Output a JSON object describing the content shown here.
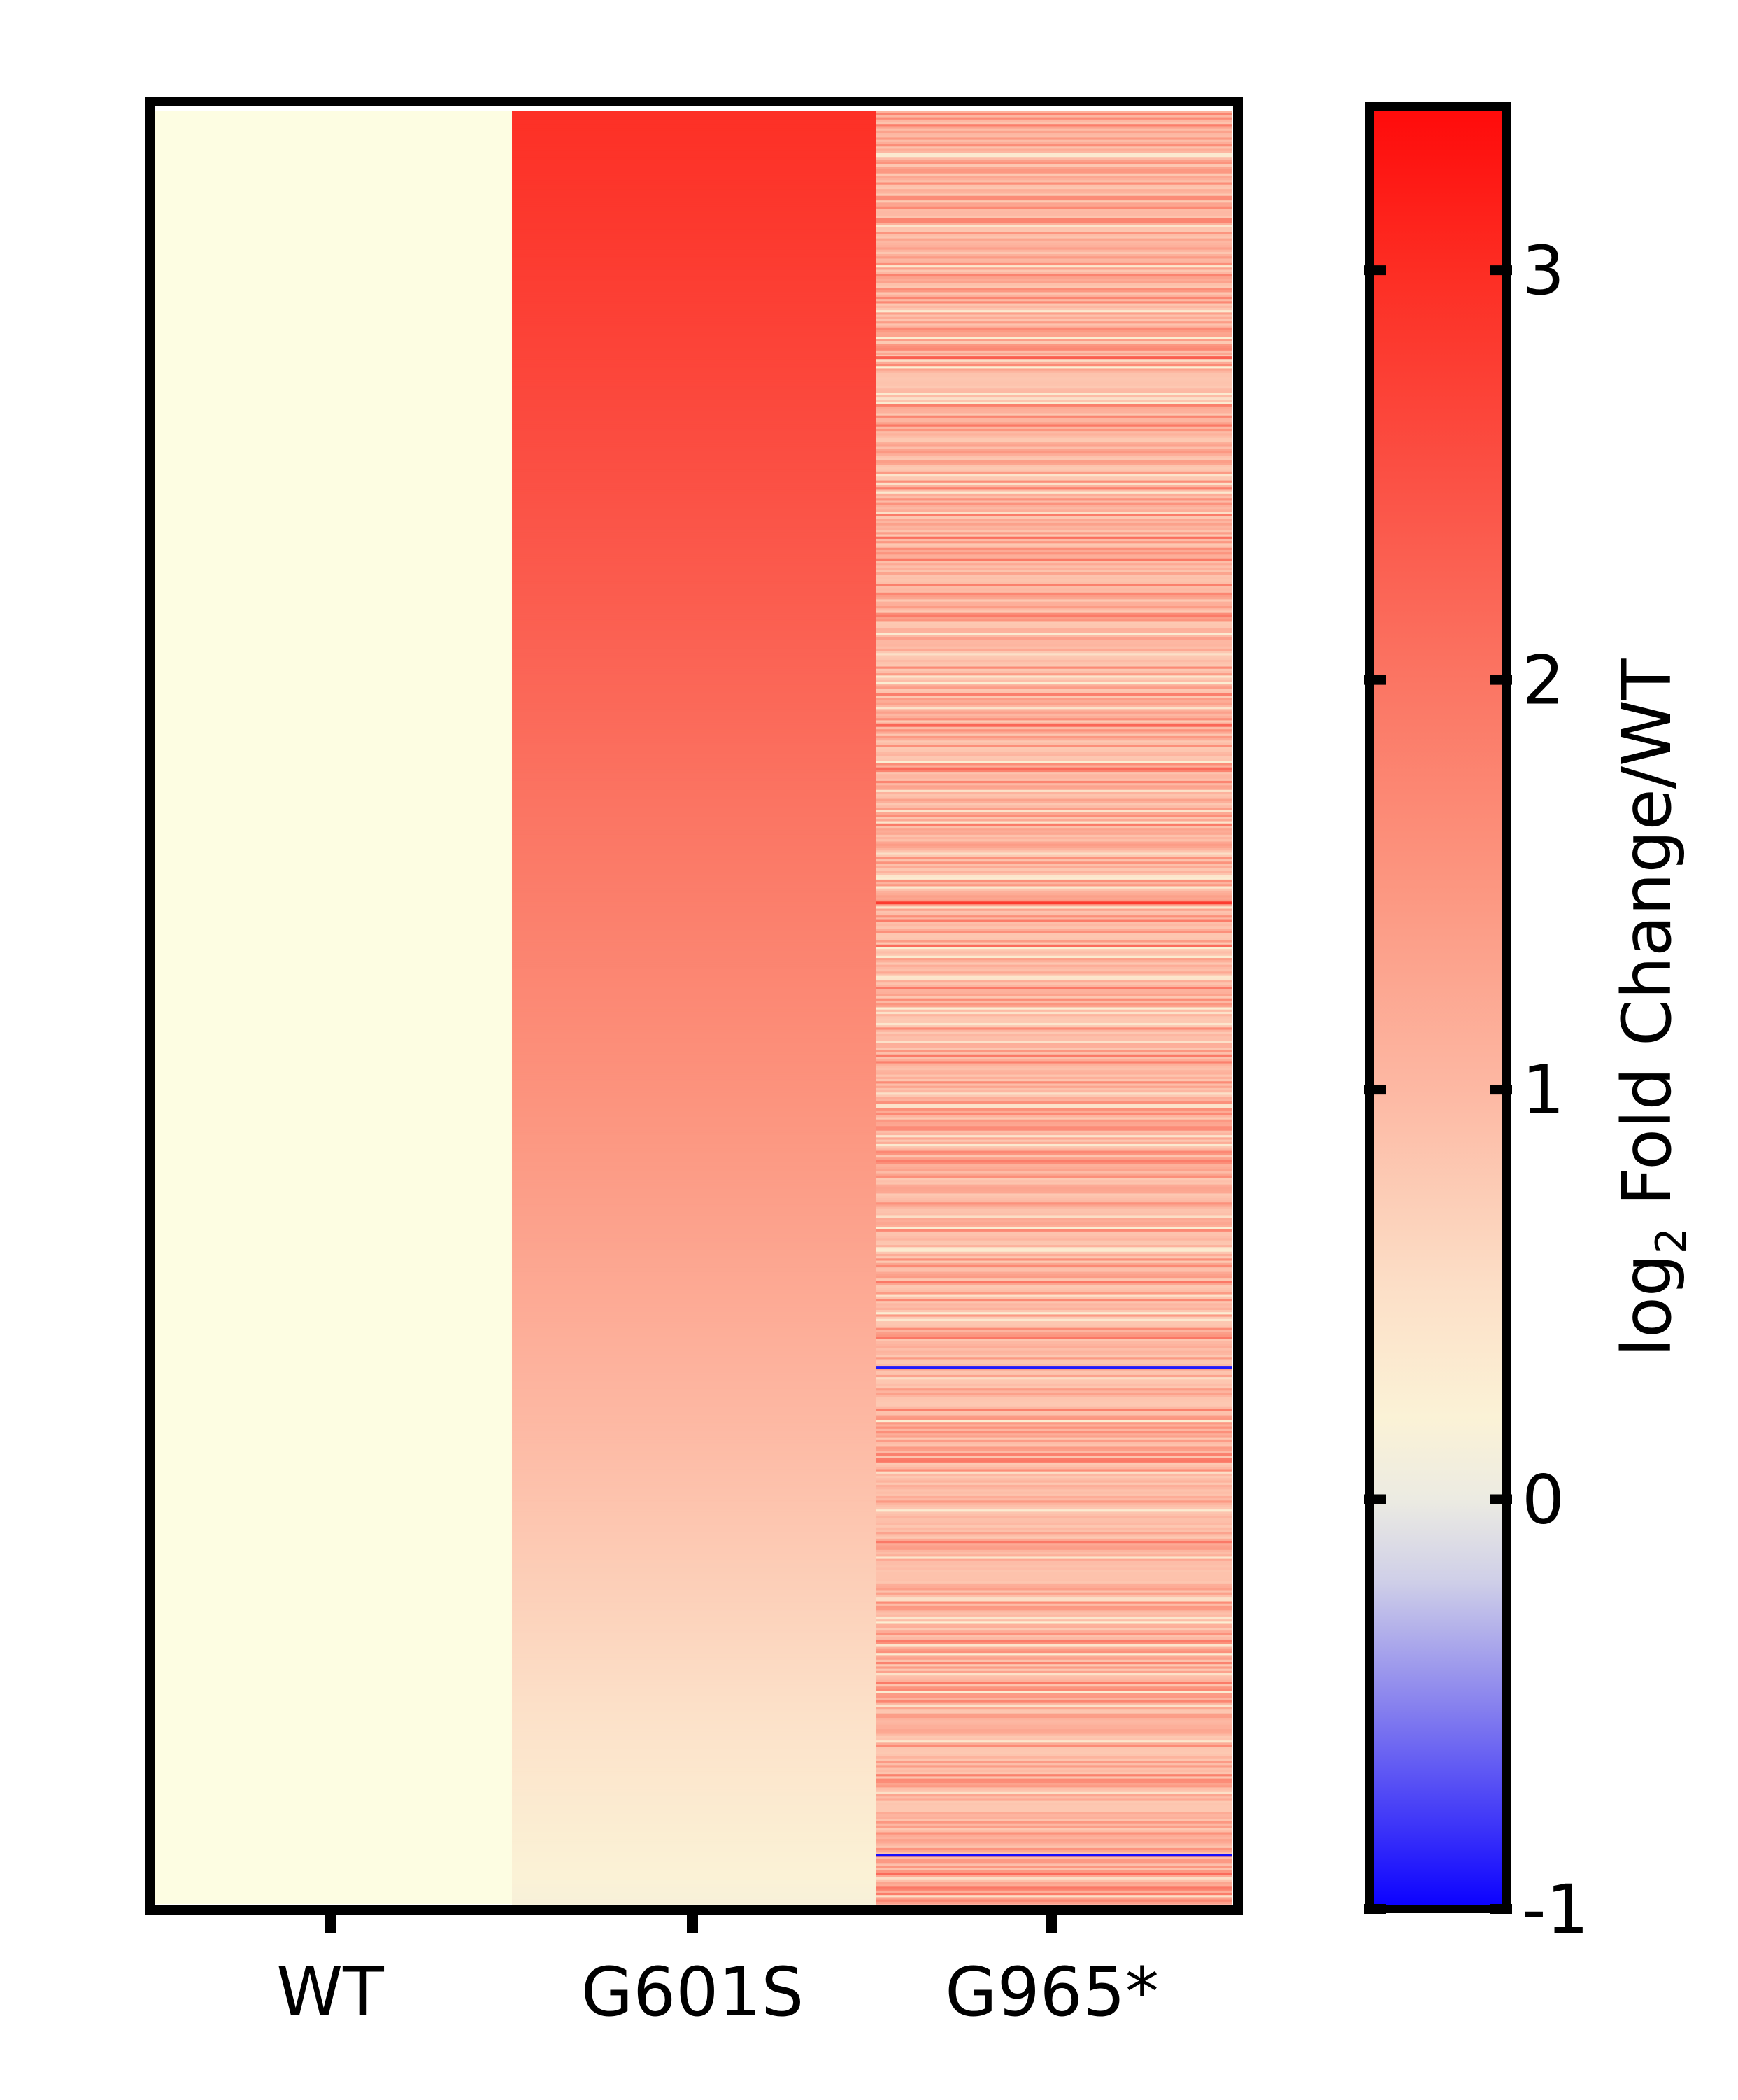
{
  "chart_data": {
    "type": "heatmap",
    "title": "",
    "columns": [
      "WT",
      "G601S",
      "G965*"
    ],
    "row_count": 800,
    "rows_order": "sorted by G601S value, descending",
    "columns_profile": [
      {
        "name": "WT",
        "values_description": "all rows equal",
        "value": 0.0
      },
      {
        "name": "G601S",
        "top_value": 2.95,
        "bottom_value": 0.15
      },
      {
        "name": "G965*",
        "typical_range": [
          0.3,
          1.7
        ],
        "highlight_rows": [
          {
            "row_fraction": 0.137,
            "value": 2.3
          },
          {
            "row_fraction": 0.342,
            "value": 2.2
          },
          {
            "row_fraction": 0.441,
            "value": 2.8
          },
          {
            "row_fraction": 0.7,
            "value": -0.9
          },
          {
            "row_fraction": 0.972,
            "value": -0.95
          }
        ]
      }
    ],
    "colorbar": {
      "label_prefix": "log",
      "label_subscript": "2",
      "label_suffix": " Fold Change/WT",
      "range": [
        -1,
        3.4
      ],
      "ticks": [
        {
          "value": 3,
          "label": "3"
        },
        {
          "value": 2,
          "label": "2"
        },
        {
          "value": 1,
          "label": "1"
        },
        {
          "value": 0,
          "label": "0"
        },
        {
          "value": -1,
          "label": "-1"
        }
      ],
      "colormap": [
        {
          "value": -1.0,
          "color": "#0a00ff"
        },
        {
          "value": -0.5,
          "color": "#8882ee"
        },
        {
          "value": -0.2,
          "color": "#cfcfe8"
        },
        {
          "value": 0.0,
          "color": "#ecebe2"
        },
        {
          "value": 0.2,
          "color": "#fbf2d6"
        },
        {
          "value": 0.5,
          "color": "#fce0c8"
        },
        {
          "value": 1.0,
          "color": "#fdb8a3"
        },
        {
          "value": 1.5,
          "color": "#fc9680"
        },
        {
          "value": 2.0,
          "color": "#fb7563"
        },
        {
          "value": 2.5,
          "color": "#fb5044"
        },
        {
          "value": 3.0,
          "color": "#fd2d23"
        },
        {
          "value": 3.4,
          "color": "#ff0a0a"
        }
      ]
    }
  },
  "colors": {
    "wt_cell": "#fdfde2",
    "frame": "#000000"
  }
}
